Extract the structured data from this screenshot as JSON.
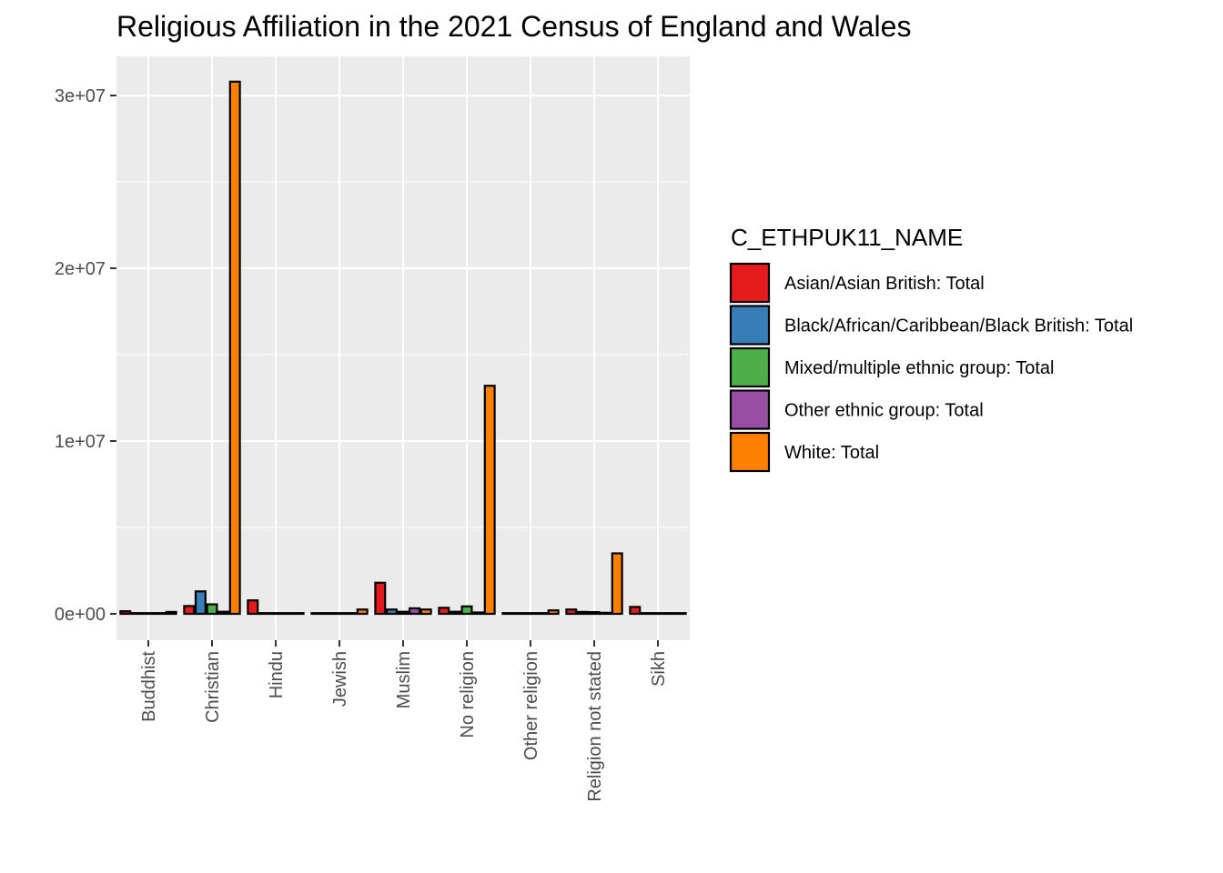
{
  "chart_data": {
    "type": "bar",
    "title": "Religious Affiliation in the 2021 Census of England and Wales",
    "xlabel": "",
    "ylabel": "",
    "categories": [
      "Buddhist",
      "Christian",
      "Hindu",
      "Jewish",
      "Muslim",
      "No religion",
      "Other religion",
      "Religion not stated",
      "Sikh"
    ],
    "y_ticks": [
      0,
      10000000,
      20000000,
      30000000
    ],
    "y_tick_labels": [
      "0e+00",
      "1e+07",
      "2e+07",
      "3e+07"
    ],
    "ylim": [
      -1500000,
      32500000
    ],
    "grid": true,
    "legend": {
      "title": "C_ETHPUK11_NAME",
      "position": "right"
    },
    "series": [
      {
        "name": "Asian/Asian British: Total",
        "color": "#E41A1C",
        "values": [
          150000,
          450000,
          780000,
          10000,
          1800000,
          350000,
          40000,
          250000,
          400000
        ]
      },
      {
        "name": "Black/African/Caribbean/Black British: Total",
        "color": "#377EB8",
        "values": [
          10000,
          1300000,
          10000,
          5000,
          250000,
          120000,
          20000,
          110000,
          10000
        ]
      },
      {
        "name": "Mixed/multiple ethnic group: Total",
        "color": "#4DAF4A",
        "values": [
          30000,
          550000,
          20000,
          20000,
          120000,
          430000,
          30000,
          100000,
          20000
        ]
      },
      {
        "name": "Other ethnic group: Total",
        "color": "#984EA3",
        "values": [
          30000,
          120000,
          20000,
          10000,
          320000,
          80000,
          20000,
          60000,
          30000
        ]
      },
      {
        "name": "White: Total",
        "color": "#FF7F00",
        "values": [
          110000,
          30800000,
          20000,
          250000,
          250000,
          13200000,
          200000,
          3500000,
          20000
        ]
      }
    ]
  }
}
